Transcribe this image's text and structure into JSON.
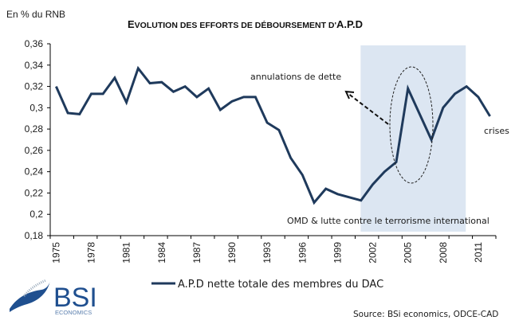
{
  "chart_data": {
    "type": "line",
    "title": "Evolution des efforts de déboursement d'A.P.D",
    "title_display": {
      "first_letter": "E",
      "rest": "VOLUTION DES EFFORTS DE DÉBOURSEMENT D'",
      "bold_suffix": "A.P.D"
    },
    "ylabel": "En % du RNB",
    "xlabel": "",
    "ylim": [
      0.18,
      0.36
    ],
    "yticks": [
      0.18,
      0.2,
      0.22,
      0.24,
      0.26,
      0.28,
      0.3,
      0.32,
      0.34,
      0.36
    ],
    "ytick_labels": [
      "0,18",
      "0,2",
      "0,22",
      "0,24",
      "0,26",
      "0,28",
      "0,3",
      "0,32",
      "0,34",
      "0,36"
    ],
    "x": [
      1975,
      1976,
      1977,
      1978,
      1979,
      1980,
      1981,
      1982,
      1983,
      1984,
      1985,
      1986,
      1987,
      1988,
      1989,
      1990,
      1991,
      1992,
      1993,
      1994,
      1995,
      1996,
      1997,
      1998,
      1999,
      2000,
      2001,
      2002,
      2003,
      2004,
      2005,
      2006,
      2007,
      2008,
      2009,
      2010,
      2011,
      2012
    ],
    "xtick_labels": [
      "1975",
      "1978",
      "1981",
      "1984",
      "1987",
      "1990",
      "1993",
      "1996",
      "1999",
      "2002",
      "2005",
      "2008",
      "2011"
    ],
    "series": [
      {
        "name": "A.P.D nette totale des membres du DAC",
        "color": "#1f3a5c",
        "values": [
          0.32,
          0.295,
          0.294,
          0.313,
          0.313,
          0.328,
          0.305,
          0.337,
          0.323,
          0.324,
          0.315,
          0.32,
          0.31,
          0.318,
          0.298,
          0.306,
          0.31,
          0.31,
          0.286,
          0.279,
          0.253,
          0.237,
          0.211,
          0.224,
          0.219,
          0.216,
          0.213,
          0.228,
          0.24,
          0.249,
          0.318,
          0.294,
          0.27,
          0.3,
          0.313,
          0.32,
          0.31,
          0.292
        ]
      }
    ],
    "shaded_region": {
      "x_from": 2001,
      "x_to": 2010,
      "color": "#dce6f2",
      "label": "OMD & lutte contre le terrorisme international"
    },
    "annotations": [
      {
        "text": "annulations de dette",
        "arrow": true,
        "highlight": "ellipse around 2004-2007"
      },
      {
        "text": "crises"
      }
    ],
    "grid": false,
    "legend": "bottom-center"
  },
  "footer": {
    "logo": {
      "name": "BSI",
      "subtitle": "ECONOMICS"
    },
    "source": "Source: BSi economics, ODCE-CAD"
  }
}
